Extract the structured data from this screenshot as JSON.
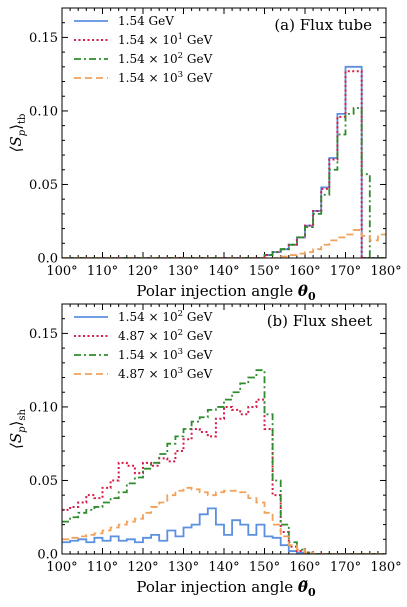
{
  "chart_data": [
    {
      "type": "line",
      "step": true,
      "title": "(a) Flux tube",
      "xlabel": "Polar injection angle θ₀",
      "ylabel": "⟨S_p⟩_tb",
      "ylabel_main": "⟨S",
      "ylabel_sub1": "p",
      "ylabel_close": "⟩",
      "ylabel_sub2": "tb",
      "xlabel_text": "Polar injection angle ",
      "xlabel_symbol": "θ",
      "xlabel_sub": "0",
      "xlim": [
        100,
        180
      ],
      "ylim": [
        0,
        0.17
      ],
      "xticks": [
        "100°",
        "110°",
        "120°",
        "130°",
        "140°",
        "150°",
        "160°",
        "170°",
        "180°"
      ],
      "yticks": [
        "0.0",
        "0.05",
        "0.10",
        "0.15"
      ],
      "legend_position": "top-left",
      "series": [
        {
          "name": "1.54 GeV",
          "name_base": "1.54",
          "name_exp": "",
          "name_unit": " GeV",
          "color": "#5B8FE0",
          "dash": "solid",
          "x": [
            100,
            150,
            152,
            154,
            156,
            158,
            160,
            162,
            164,
            166,
            168,
            170,
            172,
            174,
            176,
            178,
            180
          ],
          "values": [
            0.0,
            0.002,
            0.004,
            0.006,
            0.009,
            0.014,
            0.022,
            0.032,
            0.048,
            0.068,
            0.098,
            0.13,
            0.13,
            0.0,
            0.0,
            0.0,
            0.0
          ]
        },
        {
          "name": "1.54 × 10¹ GeV",
          "name_base": "1.54 × 10",
          "name_exp": "1",
          "name_unit": " GeV",
          "color": "#D41A46",
          "dash": "dotted",
          "x": [
            100,
            150,
            152,
            154,
            156,
            158,
            160,
            162,
            164,
            166,
            168,
            170,
            172,
            174,
            176,
            178,
            180
          ],
          "values": [
            0.0,
            0.002,
            0.004,
            0.006,
            0.009,
            0.014,
            0.022,
            0.032,
            0.047,
            0.067,
            0.096,
            0.127,
            0.127,
            0.0,
            0.0,
            0.0,
            0.0
          ]
        },
        {
          "name": "1.54 × 10² GeV",
          "name_base": "1.54 × 10",
          "name_exp": "2",
          "name_unit": " GeV",
          "color": "#2E8B2E",
          "dash": "dashdot",
          "x": [
            100,
            150,
            152,
            154,
            156,
            158,
            160,
            162,
            164,
            166,
            168,
            170,
            172,
            174,
            176,
            178,
            180
          ],
          "values": [
            0.0,
            0.002,
            0.004,
            0.006,
            0.009,
            0.014,
            0.021,
            0.03,
            0.043,
            0.06,
            0.084,
            0.098,
            0.102,
            0.057,
            0.0,
            0.0,
            0.0
          ]
        },
        {
          "name": "1.54 × 10³ GeV",
          "name_base": "1.54 × 10",
          "name_exp": "3",
          "name_unit": " GeV",
          "color": "#F2A15A",
          "dash": "dashed",
          "x": [
            100,
            150,
            152,
            154,
            156,
            158,
            160,
            162,
            164,
            166,
            168,
            170,
            172,
            174,
            176,
            178,
            180
          ],
          "values": [
            0.0,
            0.0,
            0.0,
            0.001,
            0.002,
            0.003,
            0.004,
            0.006,
            0.009,
            0.012,
            0.014,
            0.016,
            0.019,
            0.015,
            0.012,
            0.016,
            0.016
          ]
        }
      ]
    },
    {
      "type": "line",
      "step": true,
      "title": "(b) Flux sheet",
      "xlabel": "Polar injection angle θ̃₀",
      "ylabel": "⟨S_p⟩_sh",
      "ylabel_main": "⟨S",
      "ylabel_sub1": "p",
      "ylabel_close": "⟩",
      "ylabel_sub2": "sh",
      "xlabel_text": "Polar injection angle ",
      "xlabel_symbol": "θ̃",
      "xlabel_sub": "0",
      "xlim": [
        100,
        180
      ],
      "ylim": [
        0,
        0.17
      ],
      "xticks": [
        "100°",
        "110°",
        "120°",
        "130°",
        "140°",
        "150°",
        "160°",
        "170°",
        "180°"
      ],
      "yticks": [
        "0.0",
        "0.05",
        "0.10",
        "0.15"
      ],
      "legend_position": "top-left",
      "series": [
        {
          "name": "1.54 × 10² GeV",
          "name_base": "1.54 × 10",
          "name_exp": "2",
          "name_unit": " GeV",
          "color": "#5B8FE0",
          "dash": "solid",
          "x": [
            100,
            102,
            104,
            106,
            108,
            110,
            112,
            114,
            116,
            118,
            120,
            122,
            124,
            126,
            128,
            130,
            132,
            134,
            136,
            138,
            140,
            142,
            144,
            146,
            148,
            150,
            152,
            154,
            156,
            158,
            160,
            162,
            180
          ],
          "values": [
            0.008,
            0.009,
            0.01,
            0.008,
            0.011,
            0.009,
            0.012,
            0.009,
            0.01,
            0.008,
            0.011,
            0.013,
            0.009,
            0.016,
            0.012,
            0.018,
            0.02,
            0.027,
            0.031,
            0.02,
            0.013,
            0.023,
            0.02,
            0.013,
            0.02,
            0.012,
            0.011,
            0.006,
            0.002,
            0.001,
            0.0,
            0.0,
            0.0
          ]
        },
        {
          "name": "4.87 × 10² GeV",
          "name_base": "4.87 × 10",
          "name_exp": "2",
          "name_unit": " GeV",
          "color": "#D41A46",
          "dash": "dotted",
          "x": [
            100,
            102,
            104,
            106,
            108,
            110,
            112,
            114,
            116,
            118,
            120,
            122,
            124,
            126,
            128,
            130,
            132,
            134,
            136,
            138,
            140,
            142,
            144,
            146,
            148,
            150,
            152,
            154,
            156,
            158,
            160,
            162,
            180
          ],
          "values": [
            0.03,
            0.032,
            0.035,
            0.04,
            0.038,
            0.045,
            0.05,
            0.062,
            0.06,
            0.055,
            0.062,
            0.06,
            0.065,
            0.063,
            0.07,
            0.078,
            0.085,
            0.083,
            0.08,
            0.092,
            0.1,
            0.098,
            0.095,
            0.1,
            0.105,
            0.085,
            0.04,
            0.015,
            0.005,
            0.002,
            0.001,
            0.0,
            0.0
          ]
        },
        {
          "name": "1.54 × 10³ GeV",
          "name_base": "1.54 × 10",
          "name_exp": "3",
          "name_unit": " GeV",
          "color": "#2E8B2E",
          "dash": "dashdot",
          "x": [
            100,
            102,
            104,
            106,
            108,
            110,
            112,
            114,
            116,
            118,
            120,
            122,
            124,
            126,
            128,
            130,
            132,
            134,
            136,
            138,
            140,
            142,
            144,
            146,
            148,
            150,
            152,
            154,
            156,
            158,
            160,
            162,
            180
          ],
          "values": [
            0.022,
            0.025,
            0.028,
            0.03,
            0.032,
            0.035,
            0.038,
            0.042,
            0.048,
            0.052,
            0.058,
            0.062,
            0.068,
            0.075,
            0.08,
            0.085,
            0.09,
            0.093,
            0.098,
            0.1,
            0.105,
            0.11,
            0.116,
            0.12,
            0.125,
            0.095,
            0.05,
            0.02,
            0.008,
            0.003,
            0.001,
            0.0,
            0.0
          ]
        },
        {
          "name": "4.87 × 10³ GeV",
          "name_base": "4.87 × 10",
          "name_exp": "3",
          "name_unit": " GeV",
          "color": "#F2A15A",
          "dash": "dashed",
          "x": [
            100,
            102,
            104,
            106,
            108,
            110,
            112,
            114,
            116,
            118,
            120,
            122,
            124,
            126,
            128,
            130,
            132,
            134,
            136,
            138,
            140,
            142,
            144,
            146,
            148,
            150,
            152,
            154,
            156,
            158,
            160,
            162,
            180
          ],
          "values": [
            0.01,
            0.011,
            0.012,
            0.013,
            0.014,
            0.016,
            0.018,
            0.02,
            0.022,
            0.024,
            0.028,
            0.032,
            0.035,
            0.04,
            0.043,
            0.045,
            0.044,
            0.042,
            0.04,
            0.042,
            0.043,
            0.043,
            0.042,
            0.038,
            0.035,
            0.028,
            0.02,
            0.012,
            0.006,
            0.003,
            0.001,
            0.0,
            0.0
          ]
        }
      ]
    }
  ]
}
